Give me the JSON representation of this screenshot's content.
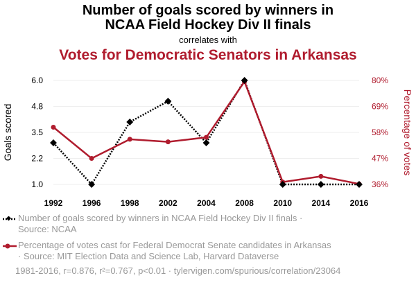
{
  "title_line1": "Number of goals scored by winners in",
  "title_line2": "NCAA Field Hockey Div II finals",
  "correlates_with": "correlates with",
  "title_line3": "Votes for Democratic Senators in Arkansas",
  "colors": {
    "series1": "#000000",
    "series2": "#b01c2e",
    "grid": "#eeeeee",
    "legend_text": "#999999"
  },
  "legend": {
    "item1_line1": "Number of goals scored by winners in NCAA Field Hockey Div II finals ·",
    "item1_line2": "Source: NCAA",
    "item2_line1": "Percentage of votes cast for Federal Democrat Senate candidates in Arkansas",
    "item2_line2": "· Source: MIT Election Data and Science Lab, Harvard Dataverse"
  },
  "footer": "1981-2016, r=0.876, r²=0.767, p<0.01 · tylervigen.com/spurious/correlation/23064",
  "chart_data": {
    "type": "line",
    "categories": [
      "1992",
      "1996",
      "1998",
      "2002",
      "2004",
      "2008",
      "2010",
      "2014",
      "2016"
    ],
    "series": [
      {
        "name": "Number of goals scored by winners in NCAA Field Hockey Div II finals",
        "axis": "left",
        "style": "dotted",
        "color": "#000000",
        "marker": "diamond",
        "values": [
          3,
          1,
          4,
          5,
          3,
          6,
          1,
          1,
          1
        ]
      },
      {
        "name": "Percentage of votes cast for Federal Democrat Senate candidates in Arkansas",
        "axis": "right",
        "style": "solid",
        "color": "#b01c2e",
        "marker": "circle",
        "values": [
          60.2,
          47.0,
          55.1,
          54.0,
          55.9,
          79.5,
          37.0,
          39.4,
          36.2
        ]
      }
    ],
    "ylabel_left": "Goals scored",
    "ylabel_right": "Percentage of votes",
    "ylim_left": [
      1.0,
      6.0
    ],
    "ylim_right": [
      36,
      80
    ],
    "yticks_left": [
      "1.0",
      "2.2",
      "3.5",
      "4.8",
      "6.0"
    ],
    "yticks_right": [
      "36%",
      "47%",
      "58%",
      "69%",
      "80%"
    ],
    "grid": true
  }
}
